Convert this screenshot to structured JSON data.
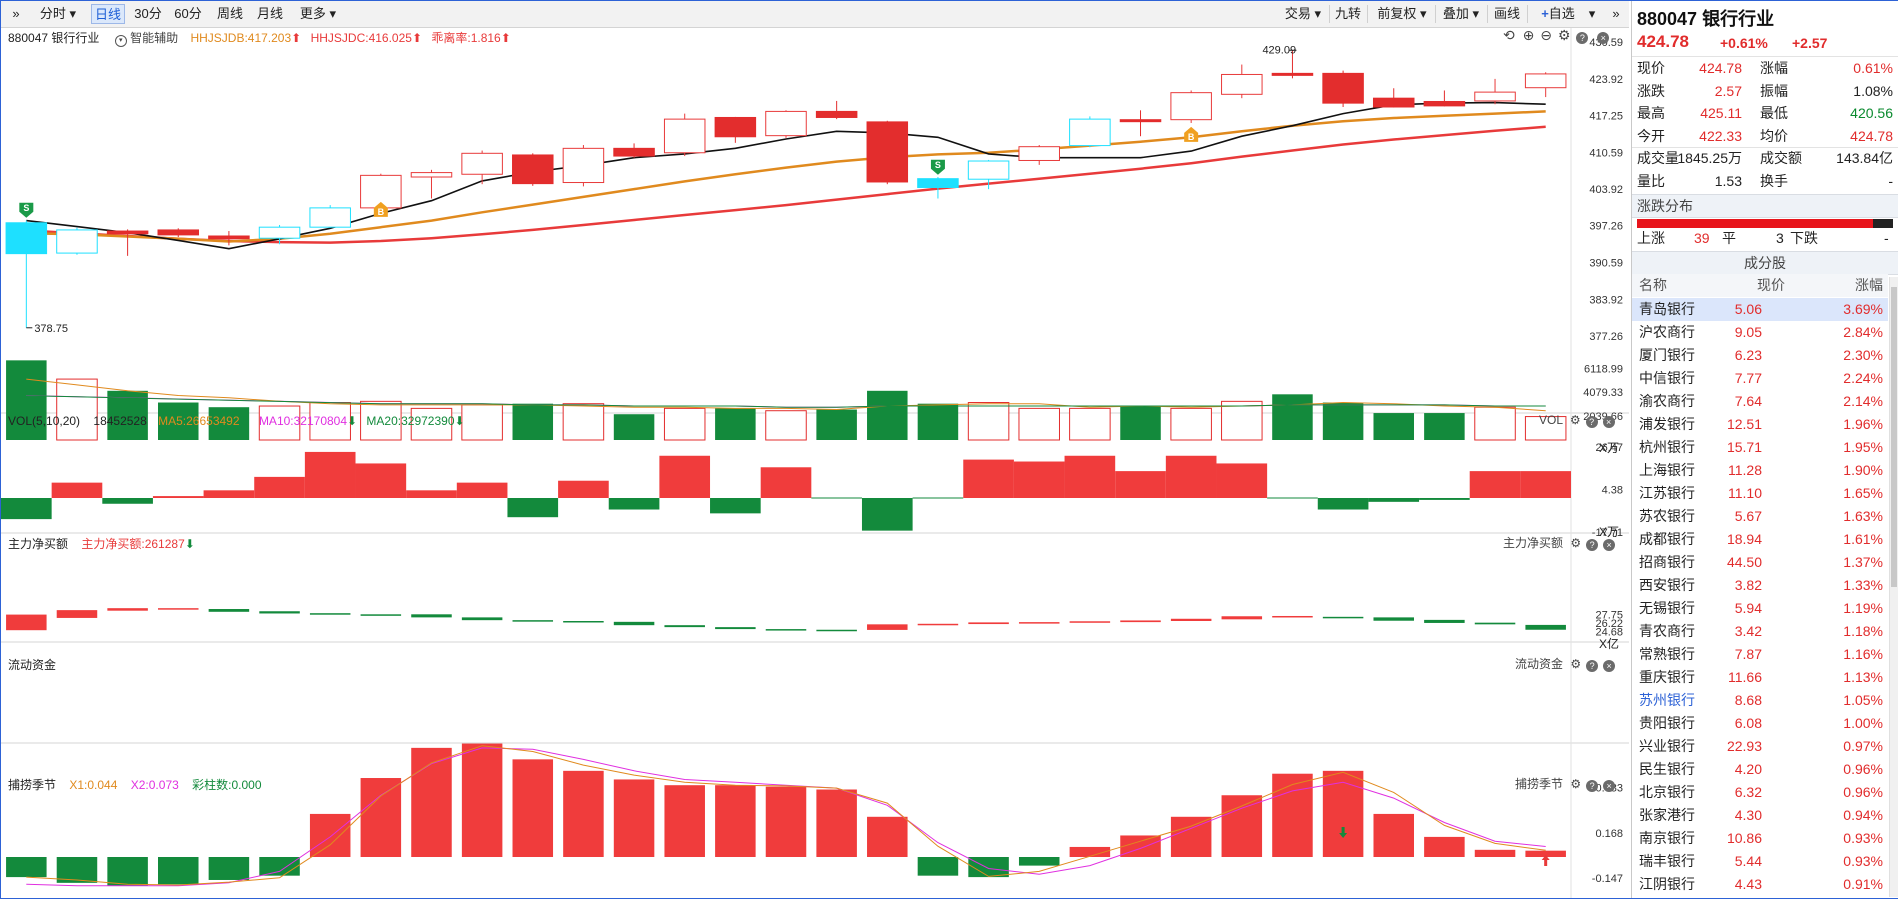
{
  "toolbar": {
    "left": [
      "分时",
      "日线",
      "30分",
      "60分",
      "周线",
      "月线",
      "更多"
    ],
    "right": [
      "交易",
      "九转",
      "前复权",
      "叠加",
      "画线",
      "自选"
    ]
  },
  "main_chart": {
    "code_name": "880047 银行行业",
    "assist": "智能辅助",
    "ind1": "HHJSJDB:417.203",
    "ind2": "HHJSJDC:416.025",
    "ind3": "乖离率:1.816",
    "axis": [
      "430.59",
      "423.92",
      "417.25",
      "410.59",
      "403.92",
      "397.26",
      "390.59",
      "383.92",
      "377.26"
    ],
    "high_label": "429.09",
    "low_label": "378.75"
  },
  "vol_panel": {
    "title": "VOL(5,10,20)",
    "value": "18452528",
    "ma5": "MA5:26653492",
    "ma10": "MA10:32170804",
    "ma20": "MA20:32972390",
    "right_name": "VOL",
    "axis": [
      "6118.99",
      "4079.33",
      "2039.66"
    ],
    "unit": "X万"
  },
  "main_money": {
    "title": "主力净买额",
    "value": "主力净买额:261287",
    "right_name": "主力净买额",
    "axis": [
      "26.47",
      "4.38",
      "-17.71"
    ],
    "unit": "X万"
  },
  "flow": {
    "title": "流动资金",
    "right_name": "流动资金",
    "axis": [
      "27.75",
      "26.22",
      "24.68"
    ],
    "unit": "X亿"
  },
  "season": {
    "title": "捕捞季节",
    "x1": "X1:0.044",
    "x2": "X2:0.073",
    "bar": "彩柱数:0.000",
    "right_name": "捕捞季节",
    "axis": [
      "0.483",
      "0.168",
      "-0.147"
    ]
  },
  "colors": {
    "up": "#e83a3a",
    "down": "#138a3c",
    "doji": "#1ee0ff",
    "ma5": "#111111",
    "ma10": "#e08a1e",
    "ma20": "#e83a3a"
  },
  "chart_data": {
    "type": "candlestick",
    "ylim": [
      377.26,
      430.59
    ],
    "candles": [
      {
        "o": 397.8,
        "h": 398.2,
        "l": 378.75,
        "c": 392.2
      },
      {
        "o": 392.3,
        "h": 396.9,
        "l": 392.0,
        "c": 396.5
      },
      {
        "o": 396.3,
        "h": 396.6,
        "l": 391.8,
        "c": 395.8
      },
      {
        "o": 396.5,
        "h": 396.8,
        "l": 395.2,
        "c": 395.6
      },
      {
        "o": 395.4,
        "h": 396.3,
        "l": 393.7,
        "c": 394.9
      },
      {
        "o": 395.0,
        "h": 397.4,
        "l": 393.9,
        "c": 397.0
      },
      {
        "o": 397.0,
        "h": 401.0,
        "l": 396.9,
        "c": 400.5
      },
      {
        "o": 400.5,
        "h": 406.7,
        "l": 400.3,
        "c": 406.4
      },
      {
        "o": 406.1,
        "h": 407.4,
        "l": 402.2,
        "c": 406.9
      },
      {
        "o": 406.6,
        "h": 410.9,
        "l": 404.8,
        "c": 410.4
      },
      {
        "o": 410.1,
        "h": 410.4,
        "l": 404.5,
        "c": 404.9
      },
      {
        "o": 405.1,
        "h": 411.9,
        "l": 404.4,
        "c": 411.3
      },
      {
        "o": 411.3,
        "h": 412.2,
        "l": 409.6,
        "c": 409.9
      },
      {
        "o": 410.5,
        "h": 417.6,
        "l": 409.9,
        "c": 416.6
      },
      {
        "o": 416.9,
        "h": 417.0,
        "l": 412.3,
        "c": 413.4
      },
      {
        "o": 413.6,
        "h": 418.2,
        "l": 413.2,
        "c": 418.0
      },
      {
        "o": 418.0,
        "h": 419.9,
        "l": 416.6,
        "c": 416.9
      },
      {
        "o": 416.1,
        "h": 416.3,
        "l": 404.8,
        "c": 405.2
      },
      {
        "o": 405.8,
        "h": 406.1,
        "l": 402.2,
        "c": 404.2
      },
      {
        "o": 405.7,
        "h": 409.2,
        "l": 403.9,
        "c": 409.0
      },
      {
        "o": 409.1,
        "h": 411.9,
        "l": 408.3,
        "c": 411.6
      },
      {
        "o": 411.8,
        "h": 417.1,
        "l": 411.5,
        "c": 416.6
      },
      {
        "o": 416.5,
        "h": 418.2,
        "l": 413.5,
        "c": 416.5
      },
      {
        "o": 416.5,
        "h": 421.8,
        "l": 415.9,
        "c": 421.4
      },
      {
        "o": 421.1,
        "h": 426.5,
        "l": 420.4,
        "c": 424.7
      },
      {
        "o": 424.9,
        "h": 429.09,
        "l": 424.0,
        "c": 424.6
      },
      {
        "o": 424.9,
        "h": 425.4,
        "l": 418.8,
        "c": 419.5
      },
      {
        "o": 420.4,
        "h": 422.2,
        "l": 418.7,
        "c": 418.8
      },
      {
        "o": 419.8,
        "h": 421.8,
        "l": 418.9,
        "c": 419.0
      },
      {
        "o": 419.9,
        "h": 423.9,
        "l": 419.3,
        "c": 421.5
      },
      {
        "o": 422.3,
        "h": 425.1,
        "l": 420.6,
        "c": 424.8
      }
    ],
    "ma5": [
      398.2,
      397.1,
      396.0,
      394.6,
      393.1,
      394.9,
      396.8,
      399.5,
      401.8,
      405.4,
      407.0,
      408.2,
      409.6,
      410.3,
      411.3,
      413.0,
      414.4,
      414.1,
      413.3,
      410.3,
      409.6,
      409.6,
      409.6,
      410.8,
      413.5,
      415.4,
      417.6,
      419.2,
      419.5,
      419.6,
      419.3
    ],
    "ma10": [
      395.9,
      395.7,
      395.3,
      394.9,
      394.4,
      394.9,
      395.8,
      397.0,
      398.2,
      399.7,
      401.1,
      402.5,
      403.9,
      405.3,
      406.6,
      407.8,
      408.9,
      409.7,
      410.2,
      410.5,
      411.1,
      411.8,
      412.5,
      413.3,
      414.4,
      415.4,
      416.2,
      416.8,
      417.2,
      417.6,
      418.0
    ],
    "ma20": [
      396.4,
      395.9,
      395.4,
      394.9,
      394.5,
      394.3,
      394.2,
      394.5,
      395.0,
      395.7,
      396.5,
      397.4,
      398.3,
      399.2,
      400.1,
      401.0,
      402.0,
      403.0,
      404.0,
      404.9,
      405.8,
      406.7,
      407.6,
      408.6,
      409.8,
      410.9,
      412.0,
      412.9,
      413.7,
      414.5,
      415.2
    ],
    "vol_ylim": [
      0,
      7000
    ],
    "volumes": [
      6800,
      5200,
      4200,
      3200,
      2800,
      2900,
      3200,
      3300,
      2700,
      3000,
      3100,
      3100,
      2200,
      2700,
      2700,
      2500,
      2600,
      4200,
      3100,
      3200,
      2700,
      2700,
      2900,
      2700,
      3300,
      3900,
      3200,
      2300,
      2300,
      2800,
      2000
    ],
    "vol_ma5": [
      5200,
      4700,
      4200,
      3800,
      3600,
      3300,
      3100,
      3000,
      3000,
      3000,
      3000,
      2900,
      2800,
      2800,
      2700,
      2700,
      2600,
      2900,
      3000,
      3100,
      3100,
      2800,
      2900,
      2800,
      2900,
      3000,
      3200,
      3100,
      2900,
      2800,
      2500
    ],
    "vol_ma10": [
      3800,
      3700,
      3600,
      3500,
      3400,
      3300,
      3200,
      3100,
      3100,
      3100,
      3000,
      3000,
      2900,
      2900,
      2900,
      2800,
      2800,
      2900,
      2900,
      2900,
      2900,
      2900,
      2900,
      2900,
      2900,
      3000,
      3000,
      3000,
      3000,
      2900,
      2900
    ],
    "money_ylim": [
      -28,
      38
    ],
    "money": [
      -11,
      8,
      -3,
      1,
      4,
      11,
      24,
      18,
      4,
      8,
      -10,
      9,
      -6,
      22,
      -8,
      16,
      0,
      -17,
      0,
      20,
      19,
      22,
      14,
      22,
      18,
      0,
      -6,
      -2,
      -1,
      14,
      14
    ],
    "flow_ylim": [
      23.5,
      29.6
    ],
    "flow": [
      [
        24.9,
        27.7
      ],
      [
        27.1,
        28.5
      ],
      [
        28.4,
        28.85
      ],
      [
        28.6,
        28.85
      ],
      [
        28.2,
        28.7
      ],
      [
        27.9,
        28.3
      ],
      [
        27.7,
        27.95
      ],
      [
        27.7,
        27.75
      ],
      [
        27.2,
        27.75
      ],
      [
        26.7,
        27.2
      ],
      [
        26.55,
        26.7
      ],
      [
        26.35,
        26.55
      ],
      [
        25.8,
        26.4
      ],
      [
        25.45,
        25.8
      ],
      [
        25.1,
        25.45
      ],
      [
        24.98,
        25.1
      ],
      [
        24.85,
        24.98
      ],
      [
        24.95,
        25.95
      ],
      [
        25.9,
        26.05
      ],
      [
        26.0,
        26.3
      ],
      [
        26.15,
        26.35
      ],
      [
        26.25,
        26.5
      ],
      [
        26.35,
        26.65
      ],
      [
        26.55,
        26.95
      ],
      [
        26.85,
        27.4
      ],
      [
        27.35,
        27.45
      ],
      [
        27.1,
        27.3
      ],
      [
        26.6,
        27.2
      ],
      [
        26.2,
        26.75
      ],
      [
        25.95,
        26.25
      ],
      [
        24.98,
        25.85
      ]
    ],
    "season_ylim": [
      -0.2,
      0.95
    ],
    "season": [
      -0.14,
      -0.18,
      -0.2,
      -0.19,
      -0.16,
      -0.13,
      0.3,
      0.55,
      0.76,
      0.79,
      0.68,
      0.6,
      0.54,
      0.5,
      0.5,
      0.49,
      0.47,
      0.28,
      -0.13,
      -0.14,
      -0.06,
      0.07,
      0.15,
      0.28,
      0.43,
      0.58,
      0.6,
      0.3,
      0.14,
      0.05,
      0.044
    ],
    "season_x2": [
      -0.19,
      -0.2,
      -0.2,
      -0.2,
      -0.18,
      -0.1,
      0.14,
      0.43,
      0.65,
      0.76,
      0.75,
      0.68,
      0.6,
      0.54,
      0.52,
      0.5,
      0.48,
      0.36,
      0.1,
      -0.08,
      -0.12,
      -0.06,
      0.06,
      0.2,
      0.34,
      0.46,
      0.52,
      0.41,
      0.24,
      0.11,
      0.073
    ]
  },
  "panel": {
    "title": "880047 银行行业",
    "price": "424.78",
    "pct": "+0.61%",
    "chg": "+2.57",
    "quote": [
      {
        "l1": "现价",
        "v1": "424.78",
        "c1": "red",
        "l2": "涨幅",
        "v2": "0.61%",
        "c2": "red"
      },
      {
        "l1": "涨跌",
        "v1": "2.57",
        "c1": "red",
        "l2": "振幅",
        "v2": "1.08%",
        "c2": "dark"
      },
      {
        "l1": "最高",
        "v1": "425.11",
        "c1": "red",
        "l2": "最低",
        "v2": "420.56",
        "c2": "green"
      },
      {
        "l1": "今开",
        "v1": "422.33",
        "c1": "red",
        "l2": "均价",
        "v2": "424.78",
        "c2": "red"
      },
      {
        "l1": "成交量",
        "v1": "1845.25万",
        "c1": "dark",
        "l2": "成交额",
        "v2": "143.84亿",
        "c2": "dark"
      },
      {
        "l1": "量比",
        "v1": "1.53",
        "c1": "dark",
        "l2": "换手",
        "v2": "-",
        "c2": "dark"
      }
    ],
    "dist_title": "涨跌分布",
    "dist": {
      "up_label": "上涨",
      "up": "39",
      "flat_label": "平",
      "flat": "3",
      "down_label": "下跌",
      "down": "-"
    },
    "stocks_title": "成分股",
    "headers": [
      "名称",
      "现价",
      "涨幅"
    ],
    "stocks": [
      [
        "青岛银行",
        "5.06",
        "3.69%"
      ],
      [
        "沪农商行",
        "9.05",
        "2.84%"
      ],
      [
        "厦门银行",
        "6.23",
        "2.30%"
      ],
      [
        "中信银行",
        "7.77",
        "2.24%"
      ],
      [
        "渝农商行",
        "7.64",
        "2.14%"
      ],
      [
        "浦发银行",
        "12.51",
        "1.96%"
      ],
      [
        "杭州银行",
        "15.71",
        "1.95%"
      ],
      [
        "上海银行",
        "11.28",
        "1.90%"
      ],
      [
        "江苏银行",
        "11.10",
        "1.65%"
      ],
      [
        "苏农银行",
        "5.67",
        "1.63%"
      ],
      [
        "成都银行",
        "18.94",
        "1.61%"
      ],
      [
        "招商银行",
        "44.50",
        "1.37%"
      ],
      [
        "西安银行",
        "3.82",
        "1.33%"
      ],
      [
        "无锡银行",
        "5.94",
        "1.19%"
      ],
      [
        "青农商行",
        "3.42",
        "1.18%"
      ],
      [
        "常熟银行",
        "7.87",
        "1.16%"
      ],
      [
        "重庆银行",
        "11.66",
        "1.13%"
      ],
      [
        "苏州银行",
        "8.68",
        "1.05%"
      ],
      [
        "贵阳银行",
        "6.08",
        "1.00%"
      ],
      [
        "兴业银行",
        "22.93",
        "0.97%"
      ],
      [
        "民生银行",
        "4.20",
        "0.96%"
      ],
      [
        "北京银行",
        "6.32",
        "0.96%"
      ],
      [
        "张家港行",
        "4.30",
        "0.94%"
      ],
      [
        "南京银行",
        "10.86",
        "0.93%"
      ],
      [
        "瑞丰银行",
        "5.44",
        "0.93%"
      ],
      [
        "江阴银行",
        "4.43",
        "0.91%"
      ]
    ]
  }
}
